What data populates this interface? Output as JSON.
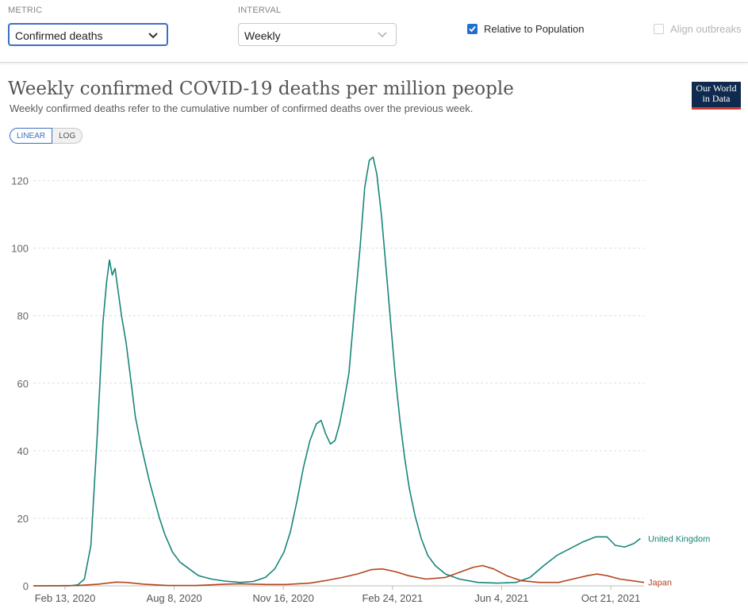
{
  "controls": {
    "metric": {
      "label": "METRIC",
      "value": "Confirmed deaths"
    },
    "interval": {
      "label": "INTERVAL",
      "value": "Weekly"
    },
    "relative_to_population": {
      "label": "Relative to Population",
      "checked": true
    },
    "align_outbreaks": {
      "label": "Align outbreaks",
      "checked": false,
      "disabled": true
    }
  },
  "header": {
    "title": "Weekly confirmed COVID-19 deaths per million people",
    "subtitle": "Weekly confirmed deaths refer to the cumulative number of confirmed deaths over the previous week.",
    "logo_line1": "Our World",
    "logo_line2": "in Data"
  },
  "scale_toggle": {
    "linear": "LINEAR",
    "log": "LOG",
    "active": "linear"
  },
  "colors": {
    "uk": "#18857b",
    "japan": "#b5441c",
    "accent": "#3b6fc6",
    "grid": "#dddddd"
  },
  "chart_data": {
    "type": "line",
    "title": "Weekly confirmed COVID-19 deaths per million people",
    "xlabel": "",
    "ylabel": "",
    "x_tick_labels": [
      "Feb 13, 2020",
      "Aug 8, 2020",
      "Nov 16, 2020",
      "Feb 24, 2021",
      "Jun 4, 2021",
      "Oct 21, 2021"
    ],
    "y_ticks": [
      0,
      20,
      40,
      60,
      80,
      100,
      120
    ],
    "ylim": [
      0,
      130
    ],
    "x_range": [
      "2020-01-22",
      "2021-11-10"
    ],
    "grid": true,
    "legend": "inline-right",
    "series": [
      {
        "name": "United Kingdom",
        "color": "#18857b",
        "points": [
          [
            "2020-01-22",
            0
          ],
          [
            "2020-03-01",
            0
          ],
          [
            "2020-03-10",
            0.3
          ],
          [
            "2020-03-17",
            2
          ],
          [
            "2020-03-24",
            12
          ],
          [
            "2020-03-31",
            45
          ],
          [
            "2020-04-06",
            78
          ],
          [
            "2020-04-10",
            90
          ],
          [
            "2020-04-13",
            96.5
          ],
          [
            "2020-04-16",
            92
          ],
          [
            "2020-04-19",
            94
          ],
          [
            "2020-04-22",
            88
          ],
          [
            "2020-04-26",
            80
          ],
          [
            "2020-05-01",
            72
          ],
          [
            "2020-05-06",
            61
          ],
          [
            "2020-05-11",
            50
          ],
          [
            "2020-05-16",
            43
          ],
          [
            "2020-05-21",
            37
          ],
          [
            "2020-05-26",
            31
          ],
          [
            "2020-05-31",
            26
          ],
          [
            "2020-06-06",
            20
          ],
          [
            "2020-06-12",
            15
          ],
          [
            "2020-06-20",
            10
          ],
          [
            "2020-06-28",
            7
          ],
          [
            "2020-07-08",
            5
          ],
          [
            "2020-07-18",
            3
          ],
          [
            "2020-08-01",
            2
          ],
          [
            "2020-08-15",
            1.4
          ],
          [
            "2020-09-01",
            1
          ],
          [
            "2020-09-15",
            1.3
          ],
          [
            "2020-09-28",
            2.5
          ],
          [
            "2020-10-08",
            5
          ],
          [
            "2020-10-18",
            10
          ],
          [
            "2020-10-25",
            16
          ],
          [
            "2020-11-01",
            25
          ],
          [
            "2020-11-08",
            35
          ],
          [
            "2020-11-15",
            43
          ],
          [
            "2020-11-22",
            48
          ],
          [
            "2020-11-27",
            49
          ],
          [
            "2020-12-02",
            45
          ],
          [
            "2020-12-07",
            42
          ],
          [
            "2020-12-12",
            43
          ],
          [
            "2020-12-17",
            48
          ],
          [
            "2020-12-22",
            55
          ],
          [
            "2020-12-27",
            63
          ],
          [
            "2021-01-02",
            82
          ],
          [
            "2021-01-08",
            100
          ],
          [
            "2021-01-13",
            118
          ],
          [
            "2021-01-18",
            126
          ],
          [
            "2021-01-22",
            127
          ],
          [
            "2021-01-26",
            122
          ],
          [
            "2021-01-31",
            110
          ],
          [
            "2021-02-05",
            94
          ],
          [
            "2021-02-10",
            78
          ],
          [
            "2021-02-15",
            62
          ],
          [
            "2021-02-20",
            49
          ],
          [
            "2021-02-25",
            38
          ],
          [
            "2021-03-02",
            29
          ],
          [
            "2021-03-08",
            21
          ],
          [
            "2021-03-15",
            14
          ],
          [
            "2021-03-22",
            9
          ],
          [
            "2021-03-30",
            6
          ],
          [
            "2021-04-10",
            3.5
          ],
          [
            "2021-04-25",
            2
          ],
          [
            "2021-05-15",
            1
          ],
          [
            "2021-06-05",
            0.8
          ],
          [
            "2021-06-25",
            1
          ],
          [
            "2021-07-10",
            2.5
          ],
          [
            "2021-07-25",
            6
          ],
          [
            "2021-08-08",
            9
          ],
          [
            "2021-08-22",
            11
          ],
          [
            "2021-09-05",
            13
          ],
          [
            "2021-09-19",
            14.5
          ],
          [
            "2021-10-01",
            14.5
          ],
          [
            "2021-10-10",
            12
          ],
          [
            "2021-10-20",
            11.5
          ],
          [
            "2021-10-30",
            12.5
          ],
          [
            "2021-11-06",
            14
          ]
        ]
      },
      {
        "name": "Japan",
        "color": "#b5441c",
        "points": [
          [
            "2020-01-22",
            0
          ],
          [
            "2020-03-10",
            0.1
          ],
          [
            "2020-04-01",
            0.5
          ],
          [
            "2020-04-20",
            1.1
          ],
          [
            "2020-05-01",
            1
          ],
          [
            "2020-05-20",
            0.5
          ],
          [
            "2020-06-15",
            0.1
          ],
          [
            "2020-07-15",
            0.1
          ],
          [
            "2020-08-15",
            0.5
          ],
          [
            "2020-09-01",
            0.6
          ],
          [
            "2020-09-30",
            0.4
          ],
          [
            "2020-10-20",
            0.4
          ],
          [
            "2020-11-15",
            0.8
          ],
          [
            "2020-12-01",
            1.5
          ],
          [
            "2020-12-20",
            2.5
          ],
          [
            "2021-01-05",
            3.5
          ],
          [
            "2021-01-20",
            4.8
          ],
          [
            "2021-02-01",
            5
          ],
          [
            "2021-02-15",
            4.2
          ],
          [
            "2021-03-01",
            3
          ],
          [
            "2021-03-20",
            2
          ],
          [
            "2021-04-10",
            2.5
          ],
          [
            "2021-04-25",
            4
          ],
          [
            "2021-05-10",
            5.5
          ],
          [
            "2021-05-20",
            6
          ],
          [
            "2021-06-01",
            5
          ],
          [
            "2021-06-15",
            3
          ],
          [
            "2021-07-01",
            1.5
          ],
          [
            "2021-07-20",
            1
          ],
          [
            "2021-08-10",
            1
          ],
          [
            "2021-08-25",
            2
          ],
          [
            "2021-09-10",
            3
          ],
          [
            "2021-09-20",
            3.5
          ],
          [
            "2021-10-01",
            3
          ],
          [
            "2021-10-15",
            2
          ],
          [
            "2021-11-10",
            1
          ]
        ]
      }
    ]
  }
}
